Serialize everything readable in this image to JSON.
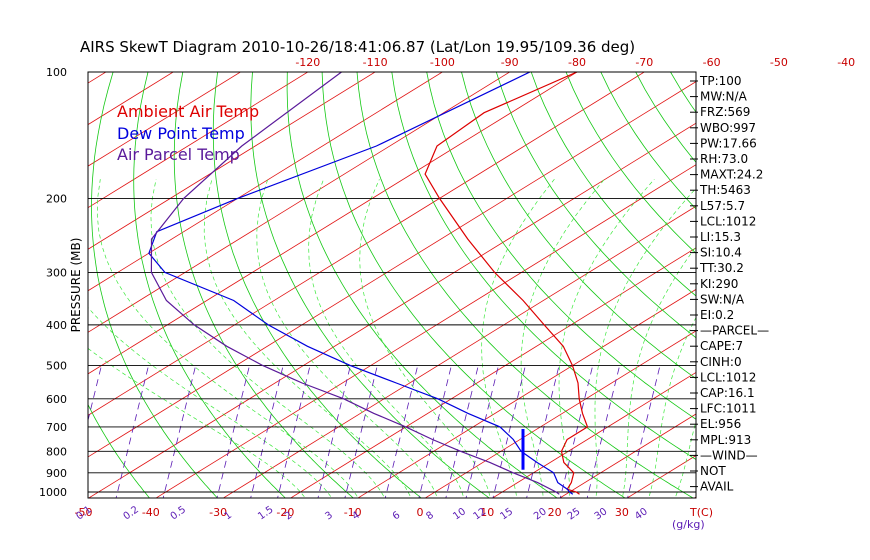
{
  "chart_data": {
    "type": "skewt",
    "title": "AIRS SkewT Diagram 2010-10-26/18:41:06.87 (Lat/Lon 19.95/109.36 deg)",
    "ylabel": "PRESSURE (MB)",
    "xlabel_units": "T(C)",
    "mixing_label": "(g/kg)",
    "pressure_ticks": [
      "100",
      "200",
      "300",
      "400",
      "500",
      "600",
      "700",
      "800",
      "900",
      "1000"
    ],
    "pressure_levels": [
      100,
      200,
      300,
      400,
      500,
      600,
      700,
      800,
      900,
      1000
    ],
    "top_temp_ticks": [
      "-120",
      "-110",
      "-100",
      "-90",
      "-80",
      "-70",
      "-60",
      "-50",
      "-40"
    ],
    "top_temp_values": [
      -120,
      -110,
      -100,
      -90,
      -80,
      -70,
      -60,
      -50,
      -40
    ],
    "bottom_temp_ticks": [
      "-50",
      "-40",
      "-30",
      "-20",
      "-10",
      "0",
      "10",
      "20",
      "30"
    ],
    "bottom_temp_values": [
      -50,
      -40,
      -30,
      -20,
      -10,
      0,
      10,
      20,
      30
    ],
    "mixing_ratio_ticks": [
      "0.1",
      "0.2",
      "0.5",
      "1",
      "1.5",
      "2",
      "3",
      "4",
      "6",
      "8",
      "10",
      "12",
      "15",
      "20",
      "25",
      "30",
      "40"
    ],
    "legend": [
      {
        "name": "Ambient Air Temp",
        "color": "#dd0000"
      },
      {
        "name": "Dew Point Temp",
        "color": "#0000dd"
      },
      {
        "name": "Air Parcel Temp",
        "color": "#5a1a9a"
      }
    ],
    "series": [
      {
        "name": "Ambient Air Temp",
        "color": "#dd0000",
        "points": [
          [
            100,
            -80
          ],
          [
            125,
            -84
          ],
          [
            150,
            -83
          ],
          [
            175,
            -78
          ],
          [
            200,
            -70
          ],
          [
            250,
            -56
          ],
          [
            300,
            -44
          ],
          [
            350,
            -33
          ],
          [
            400,
            -24
          ],
          [
            450,
            -16
          ],
          [
            500,
            -10
          ],
          [
            550,
            -5
          ],
          [
            600,
            -1
          ],
          [
            650,
            3
          ],
          [
            700,
            7
          ],
          [
            750,
            7
          ],
          [
            800,
            9
          ],
          [
            850,
            12
          ],
          [
            900,
            16
          ],
          [
            950,
            18
          ],
          [
            985,
            19
          ],
          [
            1000,
            21
          ],
          [
            1012,
            22
          ]
        ]
      },
      {
        "name": "Dew Point Temp",
        "color": "#0000dd",
        "points": [
          [
            100,
            -87
          ],
          [
            150,
            -92
          ],
          [
            200,
            -100
          ],
          [
            240,
            -104
          ],
          [
            270,
            -100
          ],
          [
            300,
            -93
          ],
          [
            350,
            -76
          ],
          [
            400,
            -65
          ],
          [
            450,
            -54
          ],
          [
            500,
            -43
          ],
          [
            550,
            -32
          ],
          [
            600,
            -22
          ],
          [
            650,
            -14
          ],
          [
            700,
            -6
          ],
          [
            750,
            -1
          ],
          [
            800,
            3
          ],
          [
            850,
            8
          ],
          [
            900,
            13
          ],
          [
            950,
            16
          ],
          [
            985,
            19
          ],
          [
            1000,
            20
          ],
          [
            1012,
            21
          ]
        ]
      },
      {
        "name": "Air Parcel Temp",
        "color": "#5a1a9a",
        "points": [
          [
            100,
            -115
          ],
          [
            150,
            -112
          ],
          [
            200,
            -108
          ],
          [
            250,
            -103
          ],
          [
            300,
            -95
          ],
          [
            350,
            -86
          ],
          [
            400,
            -76
          ],
          [
            450,
            -66
          ],
          [
            500,
            -56
          ],
          [
            550,
            -46
          ],
          [
            600,
            -36
          ],
          [
            650,
            -28
          ],
          [
            700,
            -20
          ],
          [
            750,
            -13
          ],
          [
            800,
            -6
          ],
          [
            850,
            1
          ],
          [
            900,
            7
          ],
          [
            950,
            13
          ],
          [
            1000,
            18
          ],
          [
            1012,
            19
          ]
        ]
      }
    ],
    "wind_barb": {
      "pressure_top": 708,
      "pressure_bottom": 885,
      "color": "#0000ff"
    }
  },
  "side_panel": [
    {
      "label": "TP:100"
    },
    {
      "label": "MW:N/A"
    },
    {
      "label": "FRZ:569"
    },
    {
      "label": "WBO:997"
    },
    {
      "label": "PW:17.66"
    },
    {
      "label": "RH:73.0"
    },
    {
      "label": "MAXT:24.2"
    },
    {
      "label": "TH:5463"
    },
    {
      "label": "L57:5.7"
    },
    {
      "label": "LCL:1012"
    },
    {
      "label": "LI:15.3"
    },
    {
      "label": "SI:10.4"
    },
    {
      "label": "TT:30.2"
    },
    {
      "label": "KI:290"
    },
    {
      "label": "SW:N/A"
    },
    {
      "label": "EI:0.2"
    },
    {
      "label": "—PARCEL—"
    },
    {
      "label": "CAPE:7"
    },
    {
      "label": "CINH:0"
    },
    {
      "label": "LCL:1012"
    },
    {
      "label": "CAP:16.1"
    },
    {
      "label": "LFC:1011"
    },
    {
      "label": "EL:956"
    },
    {
      "label": "MPL:913"
    },
    {
      "label": "—WIND—"
    },
    {
      "label": "NOT"
    },
    {
      "label": "AVAIL"
    }
  ],
  "colors": {
    "isotherm": "#e11414",
    "dry_adiabat": "#14c814",
    "moist_adiabat": "#3ce83c",
    "mixing_ratio": "#5a1ab4",
    "isobar": "#000000",
    "axis_text": "#c80000"
  }
}
